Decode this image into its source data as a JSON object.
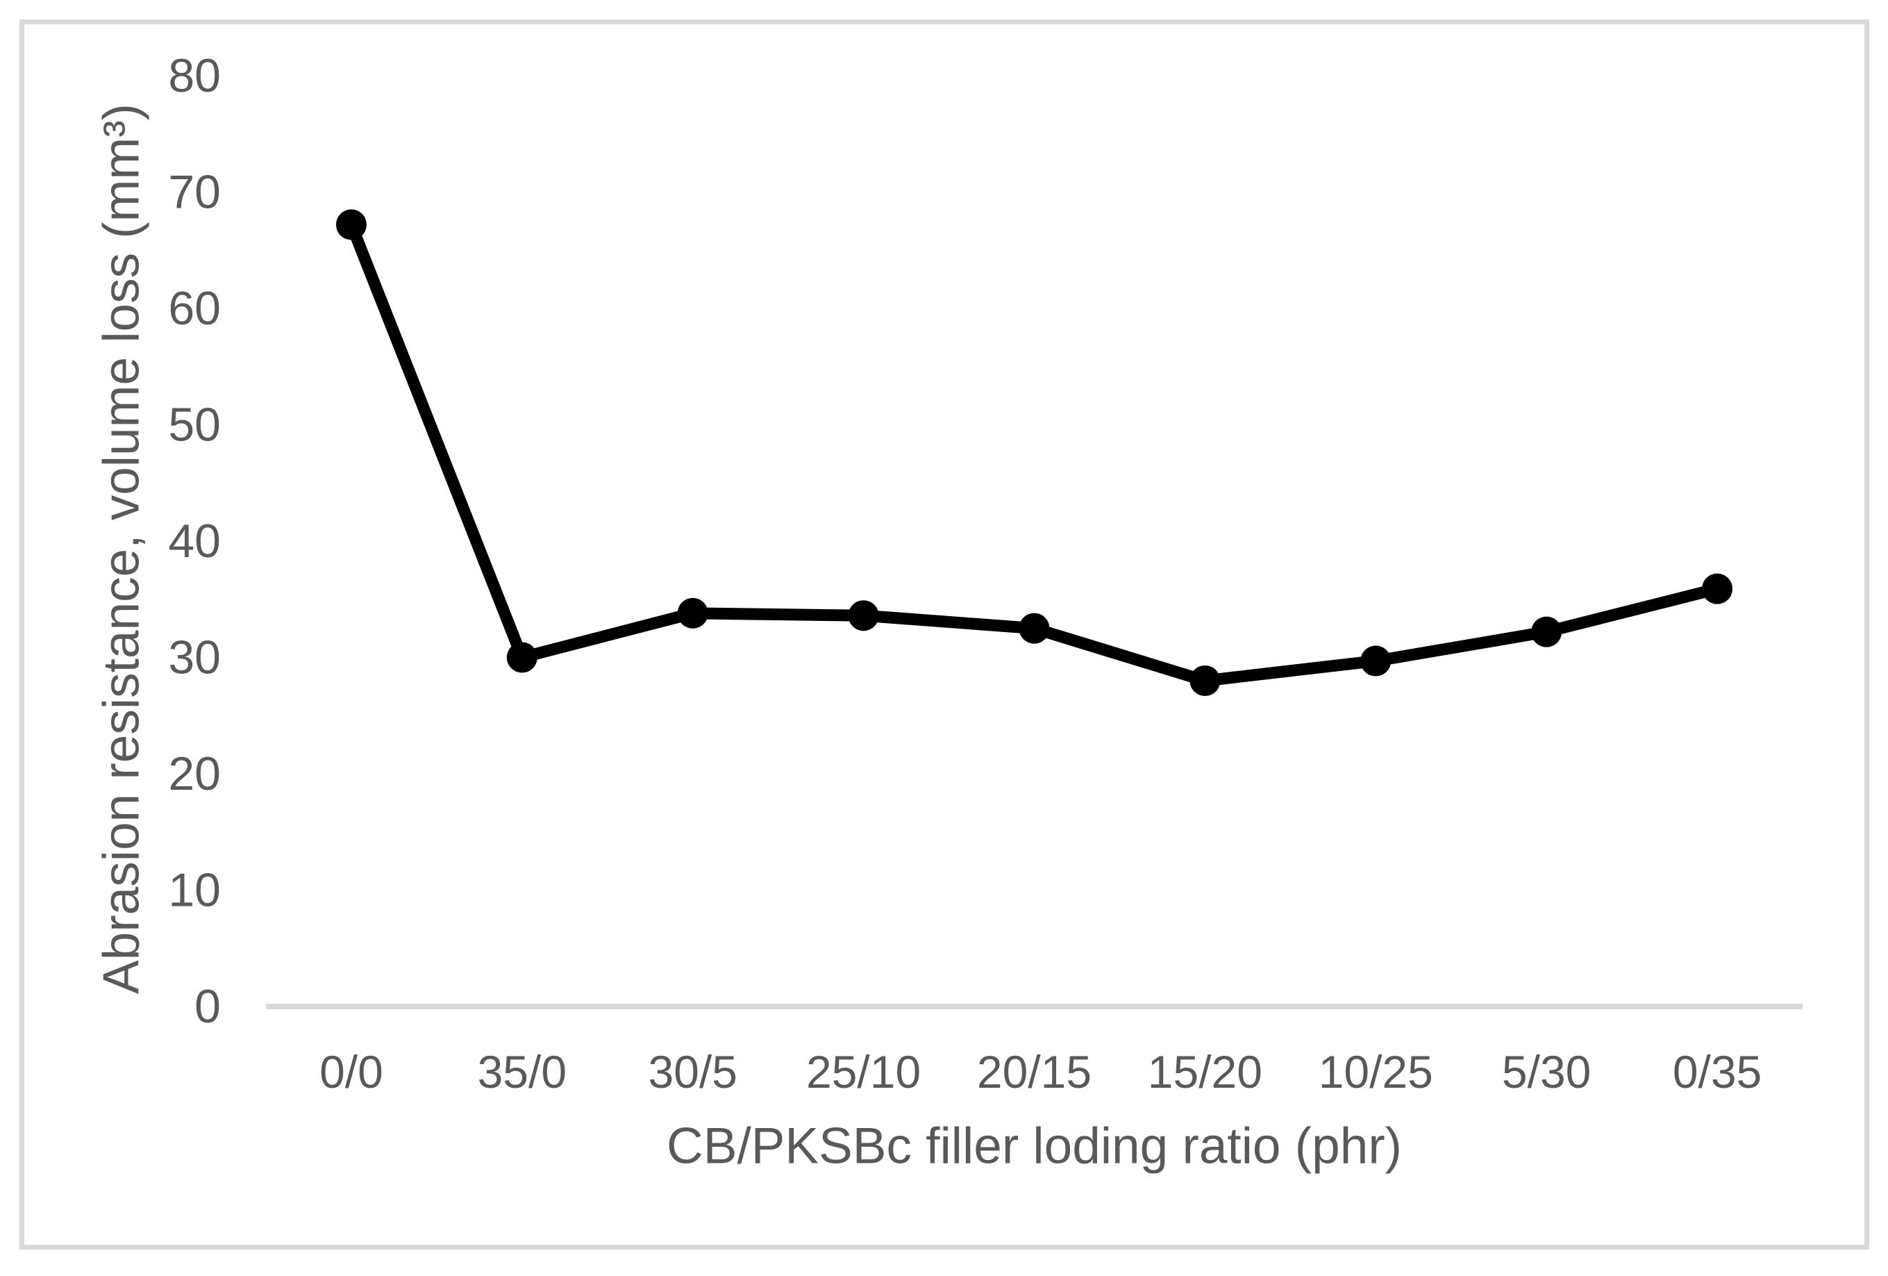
{
  "chart_data": {
    "type": "line",
    "title": "",
    "categories": [
      "0/0",
      "35/0",
      "30/5",
      "25/10",
      "20/15",
      "15/20",
      "10/25",
      "5/30",
      "0/35"
    ],
    "series": [
      {
        "name": "Abrasion resistance, volume loss",
        "values": [
          67.2,
          30,
          33.8,
          33.6,
          32.5,
          28,
          29.7,
          32.2,
          35.9
        ]
      }
    ],
    "xlabel": "CB/PKSBc filler loding ratio (phr)",
    "ylabel": "Abrasion resistance, volume loss (mm³)",
    "ylim": [
      0,
      80
    ],
    "yticks": [
      0,
      10,
      20,
      30,
      40,
      50,
      60,
      70,
      80
    ],
    "grid": false,
    "legend": false,
    "colors": {
      "series_line": "#000000",
      "marker_fill": "#000000",
      "axis_line": "#d9d9d9",
      "frame_border": "#d9d9d9",
      "text": "#595959",
      "background": "#ffffff"
    }
  }
}
